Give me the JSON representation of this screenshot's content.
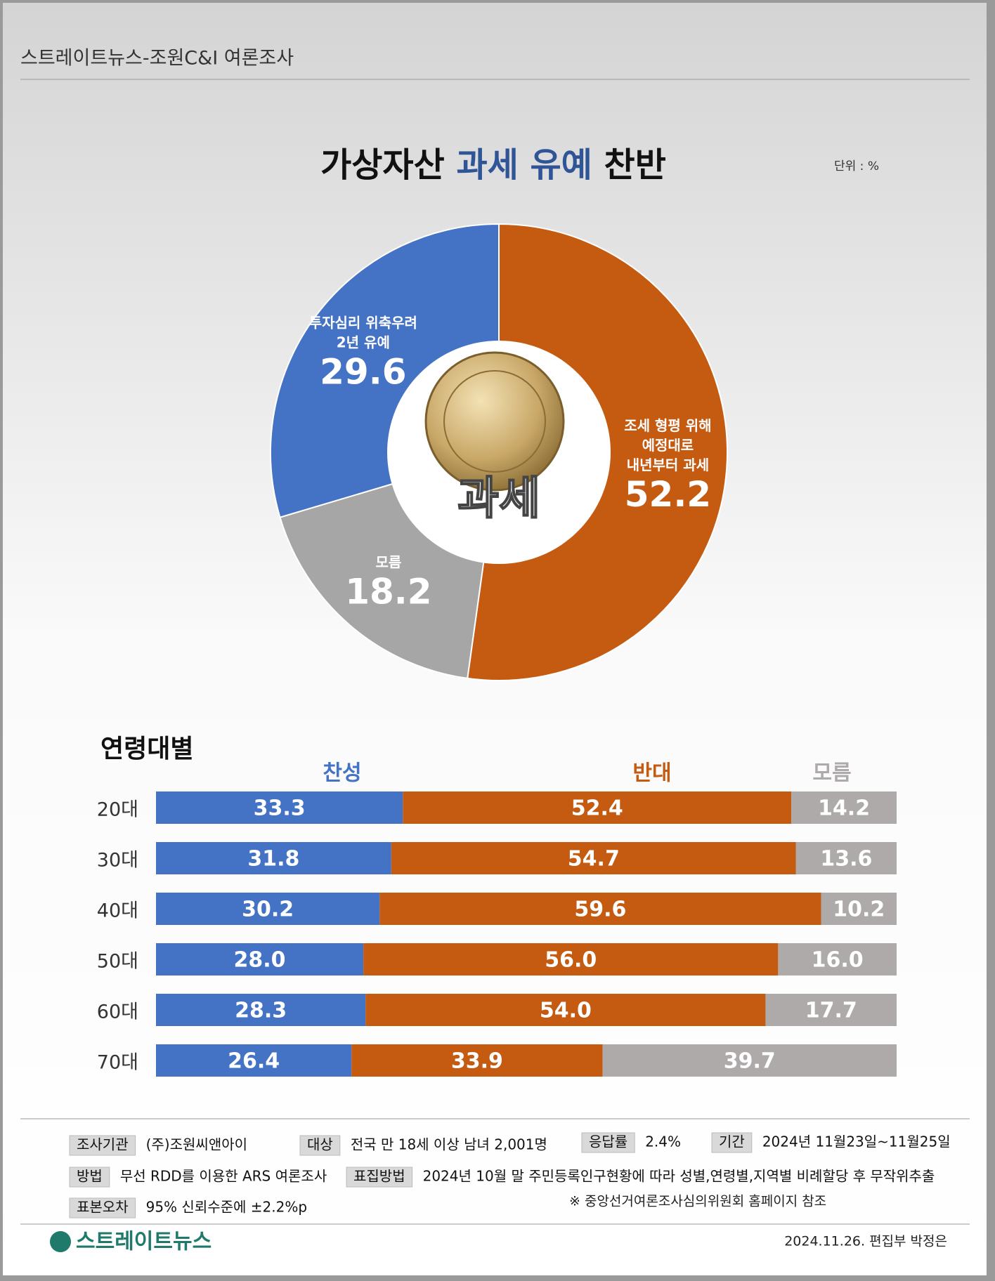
{
  "header": "스트레이트뉴스-조원C&I 여론조사",
  "chart_data": [
    {
      "type": "pie",
      "title_parts": [
        {
          "text": "가상자산",
          "color": "#111111"
        },
        {
          "text": "과세 유예",
          "color": "#2f5597"
        },
        {
          "text": "찬반",
          "color": "#111111"
        }
      ],
      "unit": "단위 : %",
      "center_label": "과세",
      "categories": [
        [
          "조세 형평 위해",
          "예정대로",
          "내년부터 과세"
        ],
        [
          "모름"
        ],
        [
          "투자심리 위축우려",
          "2년 유예"
        ]
      ],
      "values": [
        52.2,
        18.2,
        29.6
      ],
      "colors": [
        "#c55a11",
        "#a6a6a6",
        "#4472c4"
      ]
    },
    {
      "type": "stacked_bar",
      "title": "연령대별",
      "categories": [
        "20대",
        "30대",
        "40대",
        "50대",
        "60대",
        "70대"
      ],
      "series": [
        {
          "name": "찬성",
          "color": "#4472c4",
          "values": [
            33.3,
            31.8,
            30.2,
            28.0,
            28.3,
            26.4
          ],
          "value_labels": [
            "33.3",
            "31.8",
            "30.2",
            "28.0",
            "28.3",
            "26.4"
          ]
        },
        {
          "name": "반대",
          "color": "#c55a11",
          "values": [
            52.4,
            54.7,
            59.6,
            56.0,
            54.0,
            33.9
          ],
          "value_labels": [
            "52.4",
            "54.7",
            "59.6",
            "56.0",
            "54.0",
            "33.9"
          ]
        },
        {
          "name": "모름",
          "color": "#aeaaaa",
          "values": [
            14.2,
            13.6,
            10.2,
            16.0,
            17.7,
            39.7
          ],
          "value_labels": [
            "14.2",
            "13.6",
            "10.2",
            "16.0",
            "17.7",
            "39.7"
          ]
        }
      ]
    }
  ],
  "survey_info": [
    {
      "label": "조사기관",
      "text": "(주)조원씨앤아이"
    },
    {
      "label": "대상",
      "text": "전국 만 18세 이상 남녀 2,001명"
    },
    {
      "label": "응답률",
      "text": "2.4%"
    },
    {
      "label": "기간",
      "text": "2024년 11월23일~11월25일"
    },
    {
      "label": "방법",
      "text": "무선 RDD를 이용한 ARS 여론조사"
    },
    {
      "label": "표집방법",
      "text": "2024년 10월 말 주민등록인구현황에 따라 성별,연령별,지역별 비례할당 후 무작위추출"
    },
    {
      "label": "표본오차",
      "text": "95% 신뢰수준에 ±2.2%p"
    }
  ],
  "note": "※ 중앙선거여론조사심의위원회 홈페이지 참조",
  "logo": "스트레이트뉴스",
  "credit": "2024.11.26. 편집부 박정은"
}
